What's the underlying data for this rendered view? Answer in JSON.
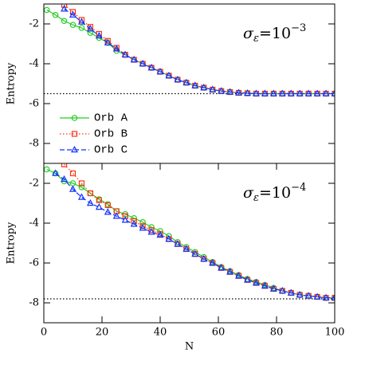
{
  "chart_data": [
    {
      "type": "line",
      "ylabel": "Entropy",
      "xlim": [
        0,
        100
      ],
      "ylim": [
        -9,
        -1
      ],
      "yticks": [
        -8,
        -6,
        -4,
        -2
      ],
      "hline": -5.5,
      "legend": "center left",
      "annotation": {
        "base": "σ",
        "sub": "ε",
        "mid": "=10",
        "sup": "−3"
      },
      "series": [
        {
          "name": "Orb A",
          "color": "#22cc22",
          "linestyle": "solid",
          "marker": "circle",
          "x": [
            1,
            4,
            7,
            10,
            13,
            16,
            19,
            22,
            25,
            28,
            31,
            34,
            37,
            40,
            43,
            46,
            49,
            52,
            55,
            58,
            61,
            64,
            67,
            70,
            73,
            76,
            79,
            82,
            85,
            88,
            91,
            94,
            97,
            100
          ],
          "values": [
            -1.3,
            -1.55,
            -1.85,
            -2.05,
            -2.2,
            -2.45,
            -2.7,
            -2.95,
            -3.35,
            -3.55,
            -3.8,
            -4.0,
            -4.2,
            -4.4,
            -4.6,
            -4.8,
            -4.95,
            -5.1,
            -5.2,
            -5.3,
            -5.37,
            -5.42,
            -5.46,
            -5.48,
            -5.5,
            -5.5,
            -5.5,
            -5.5,
            -5.5,
            -5.5,
            -5.5,
            -5.5,
            -5.5,
            -5.5
          ]
        },
        {
          "name": "Orb B",
          "color": "#ff3311",
          "linestyle": "dotted",
          "marker": "square",
          "x": [
            7,
            10,
            13,
            16,
            19,
            22,
            25,
            28,
            31,
            34,
            37,
            40,
            43,
            46,
            49,
            52,
            55,
            58,
            61,
            64,
            67,
            70,
            73,
            76,
            79,
            82,
            85,
            88,
            91,
            94,
            97,
            100
          ],
          "values": [
            -1.05,
            -1.4,
            -1.8,
            -2.15,
            -2.5,
            -2.85,
            -3.2,
            -3.55,
            -3.8,
            -4.0,
            -4.2,
            -4.4,
            -4.6,
            -4.8,
            -4.95,
            -5.1,
            -5.2,
            -5.3,
            -5.37,
            -5.42,
            -5.46,
            -5.48,
            -5.5,
            -5.5,
            -5.5,
            -5.5,
            -5.5,
            -5.5,
            -5.5,
            -5.5,
            -5.5,
            -5.5
          ]
        },
        {
          "name": "Orb C",
          "color": "#1133ff",
          "linestyle": "dashed",
          "marker": "triangle",
          "x": [
            7,
            10,
            13,
            16,
            19,
            22,
            25,
            28,
            31,
            34,
            37,
            40,
            43,
            46,
            49,
            52,
            55,
            58,
            61,
            64,
            67,
            70,
            73,
            76,
            79,
            82,
            85,
            88,
            91,
            94,
            97,
            100
          ],
          "values": [
            -1.25,
            -1.55,
            -1.9,
            -2.25,
            -2.6,
            -2.95,
            -3.25,
            -3.55,
            -3.8,
            -4.0,
            -4.2,
            -4.4,
            -4.6,
            -4.8,
            -4.95,
            -5.1,
            -5.2,
            -5.3,
            -5.37,
            -5.42,
            -5.46,
            -5.48,
            -5.5,
            -5.5,
            -5.5,
            -5.5,
            -5.5,
            -5.5,
            -5.5,
            -5.5,
            -5.5,
            -5.5
          ]
        }
      ]
    },
    {
      "type": "line",
      "ylabel": "Entropy",
      "xlabel": "N",
      "xlim": [
        0,
        100
      ],
      "xticks": [
        0,
        20,
        40,
        60,
        80,
        100
      ],
      "ylim": [
        -9,
        -1
      ],
      "yticks": [
        -8,
        -6,
        -4,
        -2
      ],
      "hline": -7.8,
      "annotation": {
        "base": "σ",
        "sub": "ε",
        "mid": "=10",
        "sup": "−4"
      },
      "series": [
        {
          "color": "#22cc22",
          "linestyle": "solid",
          "marker": "circle",
          "x": [
            1,
            4,
            7,
            10,
            13,
            16,
            19,
            22,
            25,
            28,
            31,
            34,
            37,
            40,
            43,
            46,
            49,
            52,
            55,
            58,
            61,
            64,
            67,
            70,
            73,
            76,
            79,
            82,
            85,
            88,
            91,
            94,
            97,
            100
          ],
          "values": [
            -1.3,
            -1.5,
            -1.9,
            -2.0,
            -2.2,
            -2.5,
            -2.8,
            -3.05,
            -3.4,
            -3.55,
            -3.75,
            -3.95,
            -4.2,
            -4.4,
            -4.65,
            -4.95,
            -5.2,
            -5.45,
            -5.7,
            -5.95,
            -6.2,
            -6.4,
            -6.6,
            -6.8,
            -6.95,
            -7.1,
            -7.25,
            -7.4,
            -7.5,
            -7.6,
            -7.65,
            -7.7,
            -7.75,
            -7.75
          ]
        },
        {
          "color": "#ff3311",
          "linestyle": "dotted",
          "marker": "square",
          "x": [
            7,
            10,
            13,
            16,
            19,
            22,
            25,
            28,
            31,
            34,
            37,
            40,
            43,
            46,
            49,
            52,
            55,
            58,
            61,
            64,
            67,
            70,
            73,
            76,
            79,
            82,
            85,
            88,
            91,
            94,
            97,
            100
          ],
          "values": [
            -1.05,
            -1.5,
            -2.0,
            -2.5,
            -2.85,
            -3.1,
            -3.4,
            -3.65,
            -3.9,
            -4.15,
            -4.35,
            -4.55,
            -4.8,
            -5.05,
            -5.3,
            -5.55,
            -5.8,
            -6.0,
            -6.25,
            -6.45,
            -6.65,
            -6.85,
            -7.0,
            -7.15,
            -7.3,
            -7.4,
            -7.5,
            -7.6,
            -7.65,
            -7.7,
            -7.75,
            -7.75
          ]
        },
        {
          "color": "#1133ff",
          "linestyle": "dashed",
          "marker": "triangle",
          "x": [
            4,
            7,
            10,
            13,
            16,
            19,
            22,
            25,
            28,
            31,
            34,
            37,
            40,
            43,
            46,
            49,
            52,
            55,
            58,
            61,
            64,
            67,
            70,
            73,
            76,
            79,
            82,
            85,
            88,
            91,
            94,
            97,
            100
          ],
          "values": [
            -1.5,
            -1.8,
            -2.3,
            -2.7,
            -3.0,
            -3.2,
            -3.45,
            -3.65,
            -3.85,
            -4.05,
            -4.25,
            -4.45,
            -4.6,
            -4.8,
            -5.05,
            -5.3,
            -5.55,
            -5.8,
            -6.0,
            -6.25,
            -6.45,
            -6.65,
            -6.85,
            -7.0,
            -7.15,
            -7.3,
            -7.4,
            -7.5,
            -7.6,
            -7.65,
            -7.7,
            -7.75,
            -7.75
          ]
        }
      ]
    }
  ]
}
